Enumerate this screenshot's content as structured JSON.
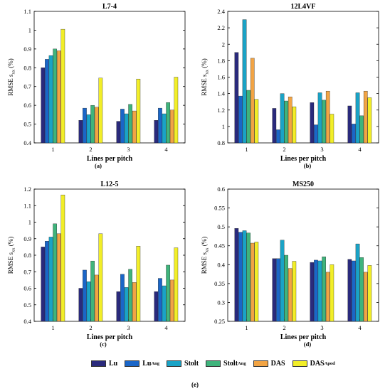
{
  "legend": [
    {
      "base": "Lu",
      "sub": "",
      "color": "#2a2a7c"
    },
    {
      "base": "Lu",
      "sub": "Ang",
      "color": "#1a66c8"
    },
    {
      "base": "Stolt",
      "sub": "",
      "color": "#1aa3c6"
    },
    {
      "base": "Stolt",
      "sub": "Ang",
      "color": "#3fb47c"
    },
    {
      "base": "DAS",
      "sub": "",
      "color": "#f2a444"
    },
    {
      "base": "DAS",
      "sub": "Apod",
      "color": "#f2ee28"
    }
  ],
  "figure_label": "(e)",
  "chart_data": [
    {
      "type": "bar",
      "title": "L7-4",
      "panel_label": "(a)",
      "ylabel": "RMSE s",
      "ylabel_sub": "xx",
      "ylabel_unit": "(%)",
      "xlabel": "Lines per pitch",
      "categories": [
        "1",
        "2",
        "3",
        "4"
      ],
      "ylim": [
        0.4,
        1.1
      ],
      "yticks": [
        0.4,
        0.5,
        0.6,
        0.7,
        0.8,
        0.9,
        1.0,
        1.1
      ],
      "ytick_labels": [
        "0.4",
        "0.5",
        "0.6",
        "0.7",
        "0.8",
        "0.9",
        "1",
        "1.1"
      ],
      "series": [
        {
          "name": "Lu",
          "values": [
            0.8,
            0.52,
            0.515,
            0.52
          ]
        },
        {
          "name": "Lu Ang",
          "values": [
            0.845,
            0.585,
            0.58,
            0.585
          ]
        },
        {
          "name": "Stolt",
          "values": [
            0.865,
            0.55,
            0.555,
            0.555
          ]
        },
        {
          "name": "Stolt Ang",
          "values": [
            0.9,
            0.6,
            0.605,
            0.615
          ]
        },
        {
          "name": "DAS",
          "values": [
            0.89,
            0.59,
            0.57,
            0.575
          ]
        },
        {
          "name": "DAS Apod",
          "values": [
            1.005,
            0.745,
            0.74,
            0.75
          ]
        }
      ]
    },
    {
      "type": "bar",
      "title": "12L4VF",
      "panel_label": "(b)",
      "ylabel": "RMSE s",
      "ylabel_sub": "xx",
      "ylabel_unit": "(%)",
      "xlabel": "Lines per pitch",
      "categories": [
        "1",
        "2",
        "3",
        "4"
      ],
      "ylim": [
        0.8,
        2.4
      ],
      "yticks": [
        0.8,
        1.0,
        1.2,
        1.4,
        1.6,
        1.8,
        2.0,
        2.2,
        2.4
      ],
      "ytick_labels": [
        "0.8",
        "1",
        "1.2",
        "1.4",
        "1.6",
        "1.8",
        "2",
        "2.2",
        "2.4"
      ],
      "series": [
        {
          "name": "Lu",
          "values": [
            1.9,
            1.22,
            1.29,
            1.25
          ]
        },
        {
          "name": "Lu Ang",
          "values": [
            1.37,
            0.96,
            1.02,
            1.03
          ]
        },
        {
          "name": "Stolt",
          "values": [
            2.3,
            1.4,
            1.41,
            1.41
          ]
        },
        {
          "name": "Stolt Ang",
          "values": [
            1.44,
            1.31,
            1.32,
            1.13
          ]
        },
        {
          "name": "DAS",
          "values": [
            1.83,
            1.36,
            1.43,
            1.43
          ]
        },
        {
          "name": "DAS Apod",
          "values": [
            1.33,
            1.24,
            1.15,
            1.35
          ]
        }
      ]
    },
    {
      "type": "bar",
      "title": "L12-5",
      "panel_label": "(c)",
      "ylabel": "RMSE s",
      "ylabel_sub": "xx",
      "ylabel_unit": "(%)",
      "xlabel": "Lines per pitch",
      "categories": [
        "1",
        "2",
        "3",
        "4"
      ],
      "ylim": [
        0.4,
        1.2
      ],
      "yticks": [
        0.4,
        0.5,
        0.6,
        0.7,
        0.8,
        0.9,
        1.0,
        1.1,
        1.2
      ],
      "ytick_labels": [
        "0.4",
        "0.5",
        "0.6",
        "0.7",
        "0.8",
        "0.9",
        "1",
        "1.1",
        "1.2"
      ],
      "series": [
        {
          "name": "Lu",
          "values": [
            0.85,
            0.6,
            0.58,
            0.58
          ]
        },
        {
          "name": "Lu Ang",
          "values": [
            0.885,
            0.71,
            0.685,
            0.66
          ]
        },
        {
          "name": "Stolt",
          "values": [
            0.91,
            0.64,
            0.605,
            0.615
          ]
        },
        {
          "name": "Stolt Ang",
          "values": [
            0.99,
            0.765,
            0.715,
            0.74
          ]
        },
        {
          "name": "DAS",
          "values": [
            0.93,
            0.68,
            0.635,
            0.65
          ]
        },
        {
          "name": "DAS Apod",
          "values": [
            1.165,
            0.93,
            0.855,
            0.845
          ]
        }
      ]
    },
    {
      "type": "bar",
      "title": "MS250",
      "panel_label": "(d)",
      "ylabel": "RMSE s",
      "ylabel_sub": "xx",
      "ylabel_unit": "(%)",
      "xlabel": "Lines per pitch",
      "categories": [
        "1",
        "2",
        "3",
        "4"
      ],
      "ylim": [
        0.25,
        0.6
      ],
      "yticks": [
        0.25,
        0.3,
        0.35,
        0.4,
        0.45,
        0.5,
        0.55,
        0.6
      ],
      "ytick_labels": [
        "0.25",
        "0.3",
        "0.35",
        "0.4",
        "0.45",
        "0.5",
        "0.55",
        "0.6"
      ],
      "series": [
        {
          "name": "Lu",
          "values": [
            0.496,
            0.416,
            0.406,
            0.414
          ]
        },
        {
          "name": "Lu Ang",
          "values": [
            0.486,
            0.416,
            0.412,
            0.41
          ]
        },
        {
          "name": "Stolt",
          "values": [
            0.49,
            0.465,
            0.41,
            0.455
          ]
        },
        {
          "name": "Stolt Ang",
          "values": [
            0.484,
            0.425,
            0.421,
            0.419
          ]
        },
        {
          "name": "DAS",
          "values": [
            0.457,
            0.39,
            0.38,
            0.38
          ]
        },
        {
          "name": "DAS Apod",
          "values": [
            0.46,
            0.409,
            0.4,
            0.398
          ]
        }
      ]
    }
  ]
}
